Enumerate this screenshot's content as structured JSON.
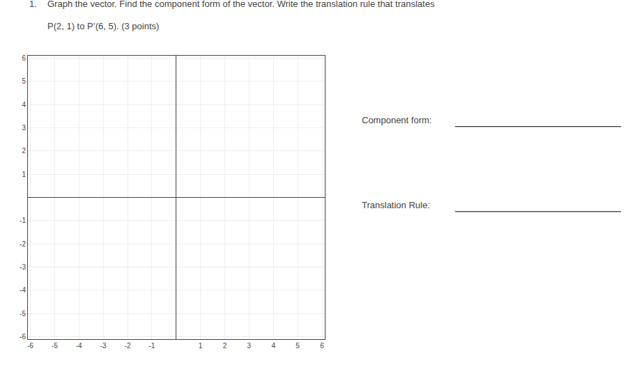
{
  "chart_data": {
    "type": "scatter",
    "title": [
      "1.",
      "Graph the vector. Find the component form of the vector. Write the translation rule that translates",
      "P(2, 1) to P’(6, 5). (3 points)"
    ],
    "annotations": [
      "Component form:",
      "Translation Rule:"
    ],
    "x": [],
    "values": [],
    "xlim": [
      -6.1,
      6.1
    ],
    "xticks": [
      -6,
      -5,
      -4,
      -3,
      -2,
      -1,
      1,
      2,
      3,
      4,
      5,
      6
    ],
    "ylim": [
      -6.1,
      6.1
    ],
    "yticks": [
      -6,
      -5,
      -4,
      -3,
      -2,
      -1,
      1,
      2,
      3,
      4,
      5,
      6
    ],
    "grid": true
  }
}
